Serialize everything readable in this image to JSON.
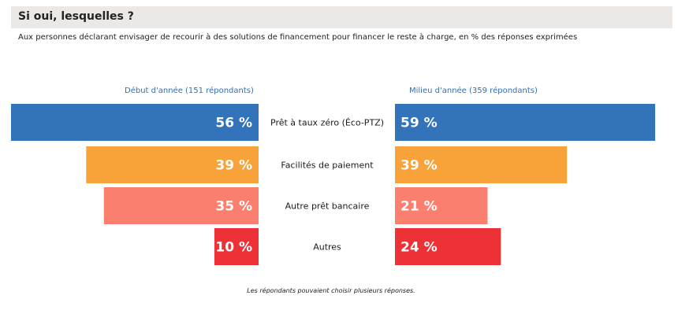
{
  "title": "Si oui, lesquelles ?",
  "subtitle": "Aux personnes déclarant envisager de recourir à des solutions de financement pour financer le reste à charge, en % des réponses exprimées",
  "note": "Les répondants pouvaient choisir plusieurs réponses.",
  "colors": {
    "Prêt à taux zéro (Éco-PTZ)": "#3273b9",
    "Facilités de paiement": "#f8a23a",
    "Autre prêt bancaire": "#fb7f6e",
    "Autres": "#ec3137"
  },
  "chart_data": {
    "type": "bar",
    "orientation": "horizontal-butterfly",
    "categories": [
      "Prêt à taux zéro (Éco-PTZ)",
      "Facilités de paiement",
      "Autre prêt bancaire",
      "Autres"
    ],
    "series": [
      {
        "name": "Début d'année (151 répondants)",
        "values": [
          56,
          39,
          35,
          10
        ],
        "labels": [
          "56 %",
          "39 %",
          "35 %",
          "10 %"
        ]
      },
      {
        "name": "Milieu d'année (359 répondants)",
        "values": [
          59,
          39,
          21,
          24
        ],
        "labels": [
          "59 %",
          "39 %",
          "21 %",
          "24 %"
        ]
      }
    ],
    "unit": "%",
    "xlim": [
      0,
      59
    ]
  }
}
